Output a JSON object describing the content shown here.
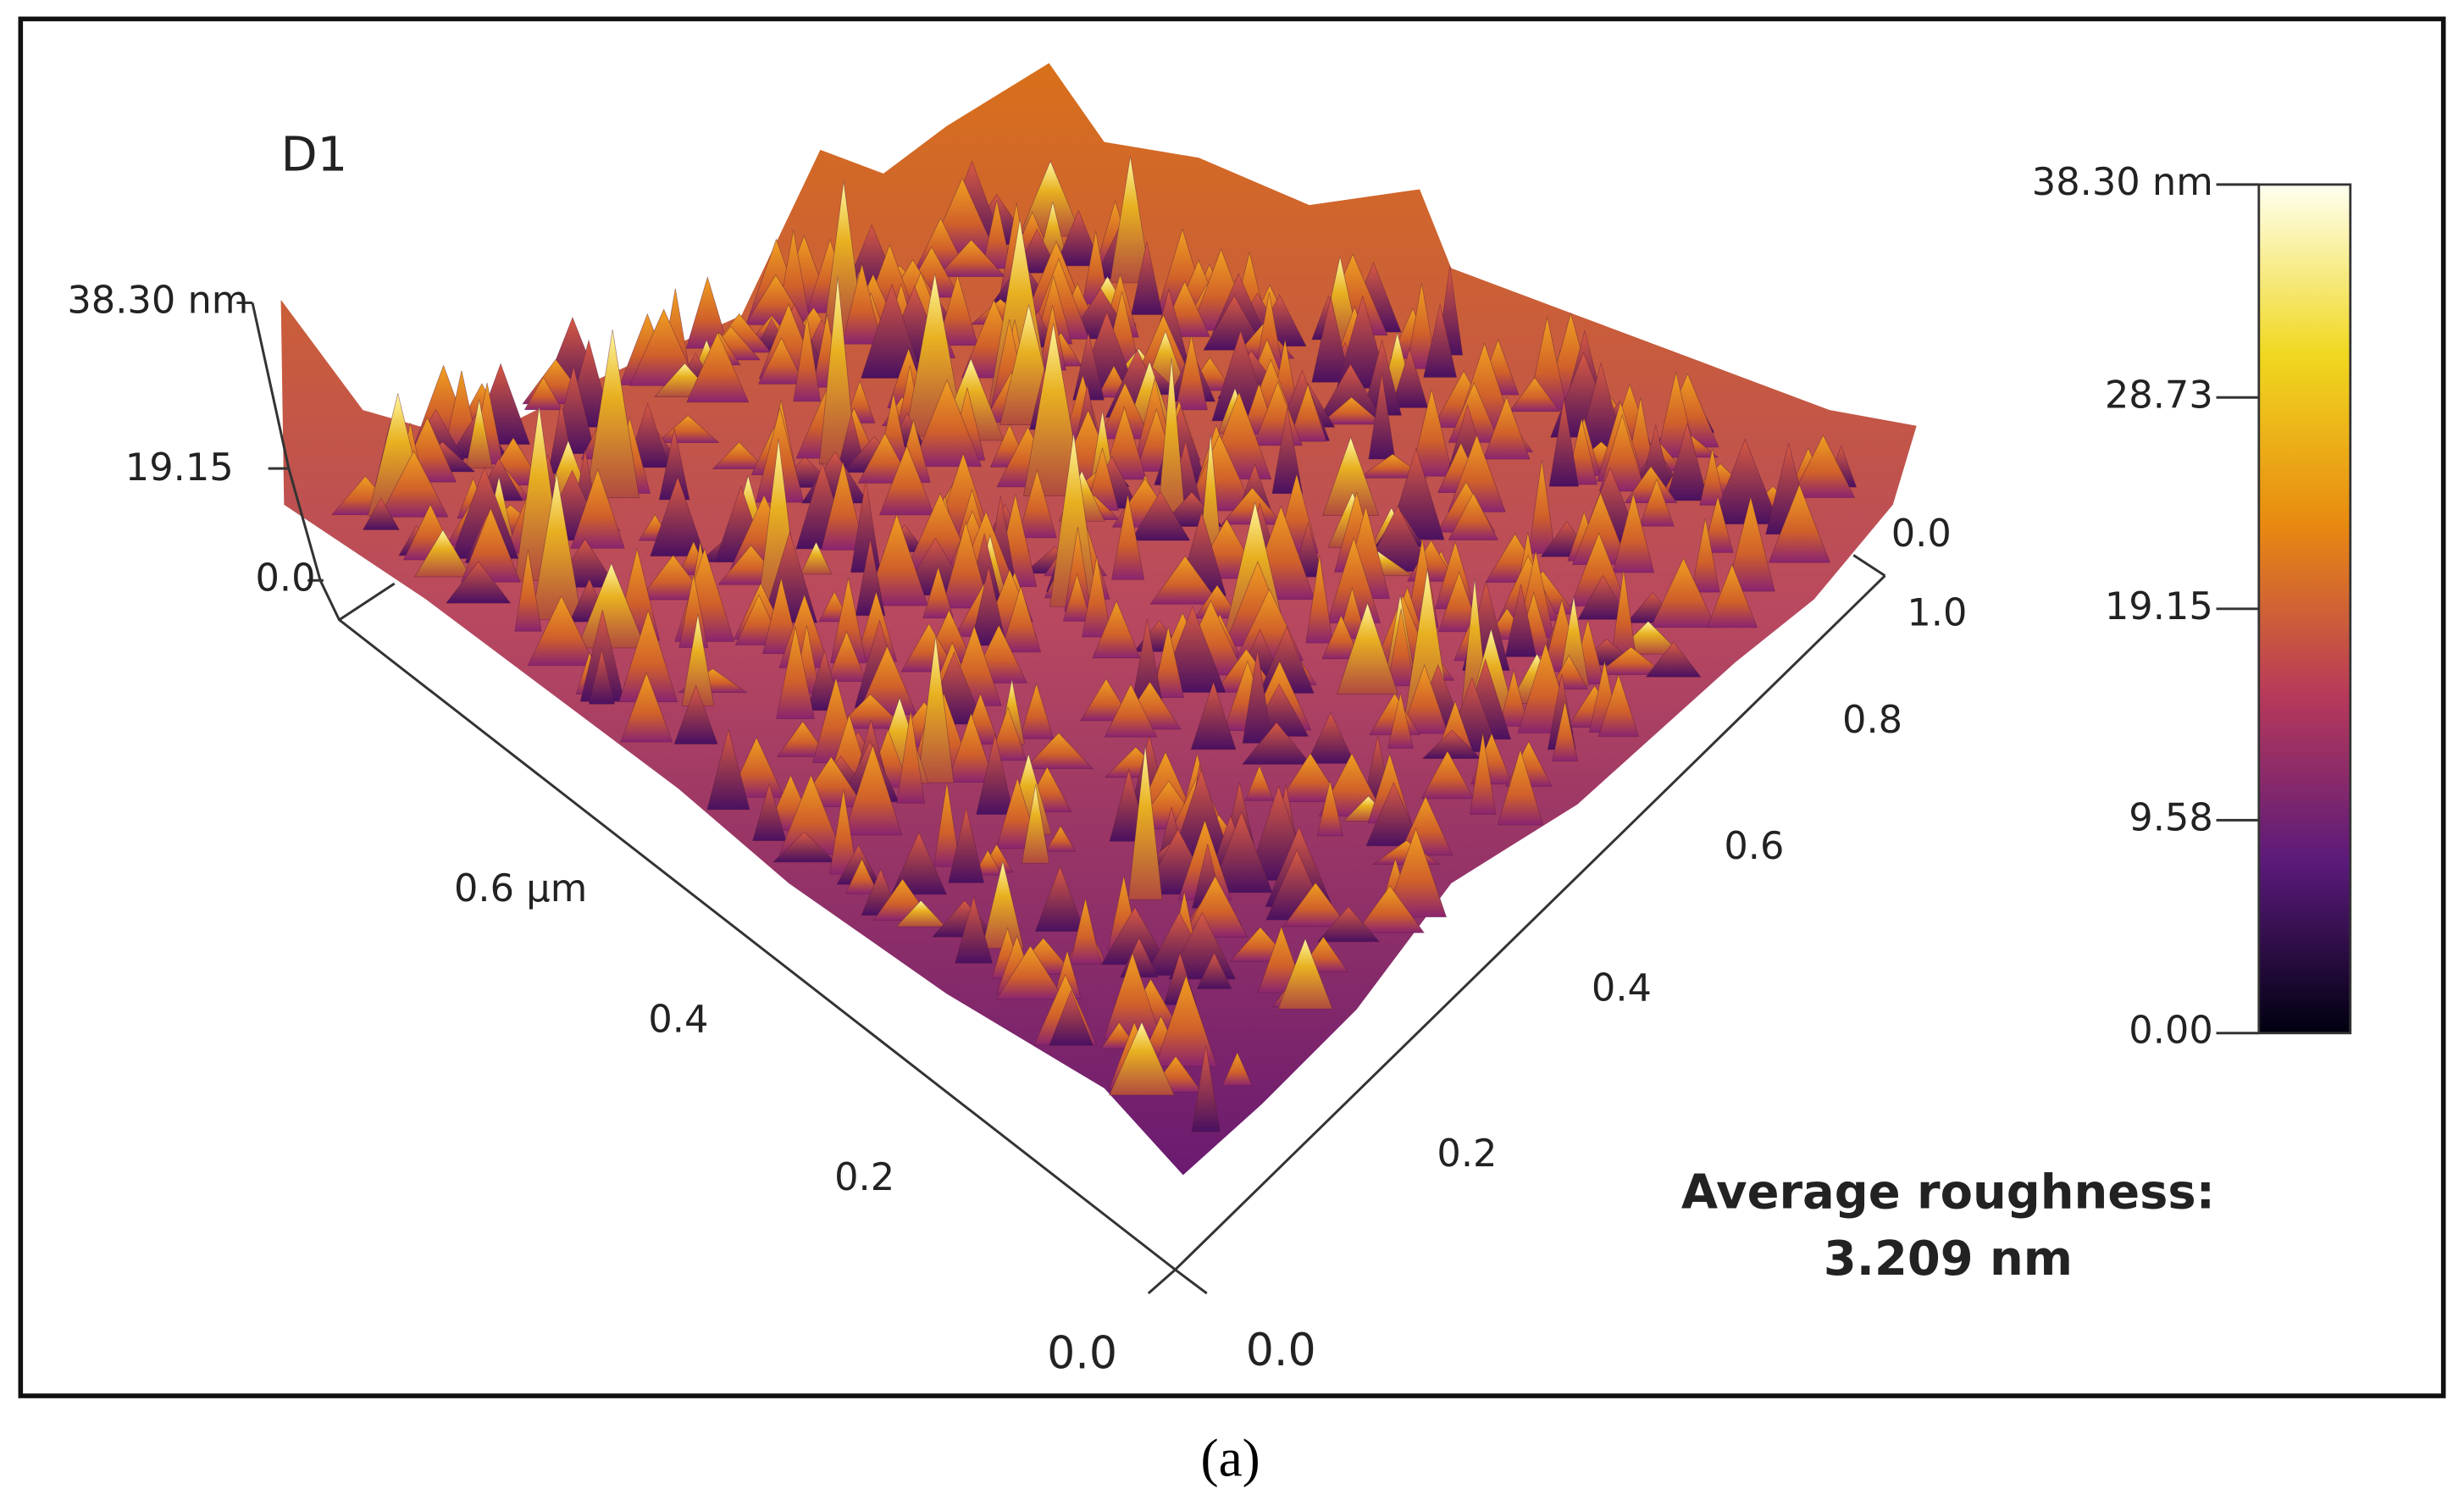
{
  "panel_label": "D1",
  "z_axis": {
    "ticks": [
      "38.30 nm",
      "19.15",
      "0.0"
    ]
  },
  "x_axis": {
    "ticks": [
      "0.0",
      "0.2",
      "0.4",
      "0.6 µm"
    ]
  },
  "y_axis": {
    "ticks": [
      "0.0",
      "0.2",
      "0.4",
      "0.6",
      "0.8",
      "1.0"
    ]
  },
  "back_label": "0.0",
  "colorbar": {
    "ticks": [
      "38.30 nm",
      "28.73",
      "19.15",
      "9.58",
      "0.00"
    ]
  },
  "roughness": {
    "label": "Average roughness:",
    "value": "3.209 nm"
  },
  "caption": "(a)"
}
